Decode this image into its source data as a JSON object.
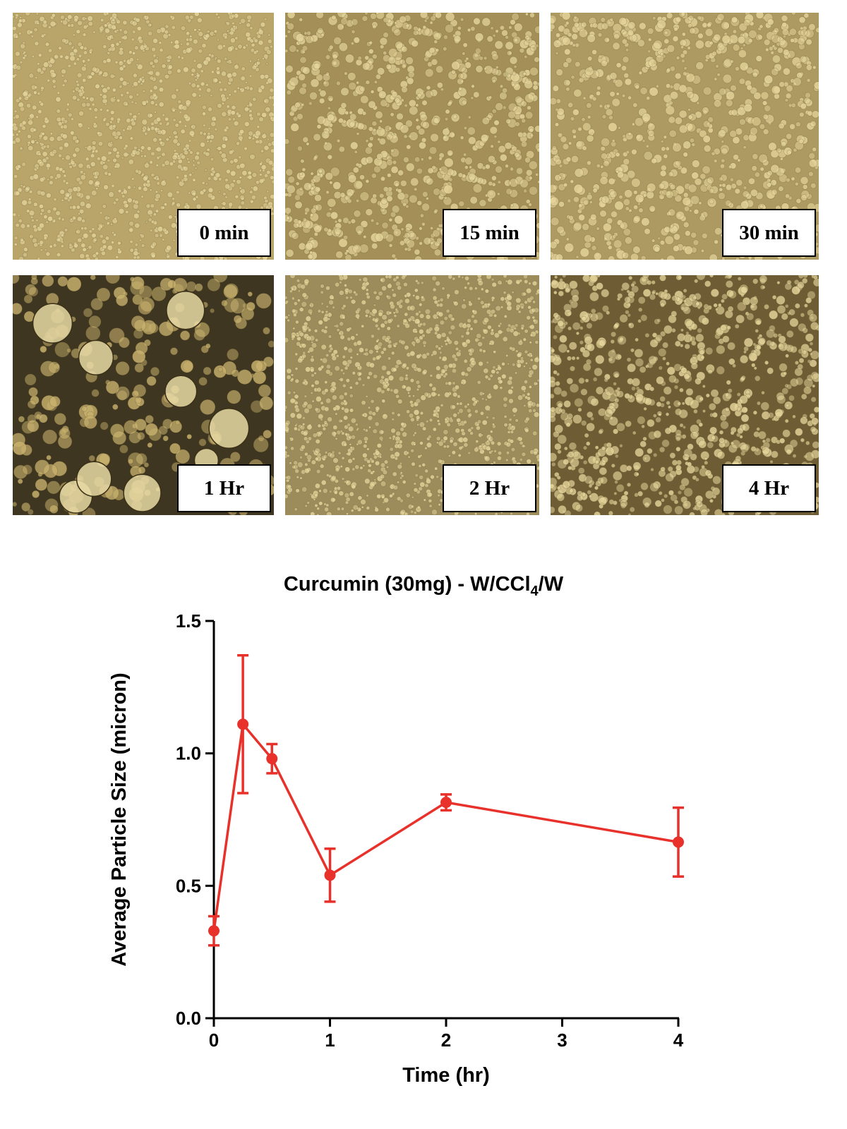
{
  "micrographs": [
    {
      "label": "0 min"
    },
    {
      "label": "15 min"
    },
    {
      "label": "30 min"
    },
    {
      "label": "1 Hr"
    },
    {
      "label": "2 Hr"
    },
    {
      "label": "4 Hr"
    }
  ],
  "chart_data": {
    "type": "line",
    "title_main": "Curcumin (30mg) - W/CCl",
    "title_sub": "4",
    "title_end": "/W",
    "xlabel": "Time (hr)",
    "ylabel": "Average Particle Size (micron)",
    "x_tick_labels": [
      "0",
      "1",
      "2",
      "3",
      "4"
    ],
    "y_tick_labels": [
      "0.0",
      "0.5",
      "1.0",
      "1.5"
    ],
    "ylim": [
      0,
      1.5
    ],
    "color": "#e8312a",
    "series": [
      {
        "points": [
          {
            "x": 0,
            "y": 0.33,
            "err": 0.055
          },
          {
            "x": 0.25,
            "y": 1.11,
            "err": 0.26
          },
          {
            "x": 0.5,
            "y": 0.98,
            "err": 0.055
          },
          {
            "x": 1,
            "y": 0.54,
            "err": 0.1
          },
          {
            "x": 2,
            "y": 0.815,
            "err": 0.03
          },
          {
            "x": 4,
            "y": 0.665,
            "err": 0.13
          }
        ]
      }
    ]
  }
}
